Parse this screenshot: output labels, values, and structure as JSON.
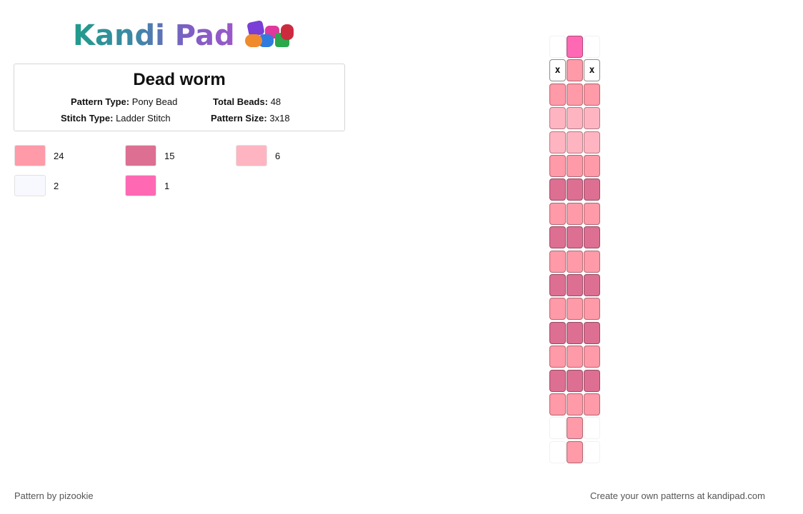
{
  "logo": {
    "text": "Kandi Pad",
    "bead_colors": [
      "#7a3fd6",
      "#e0389c",
      "#2aa84b",
      "#2f7be0",
      "#f08a2c",
      "#cc2b3e"
    ]
  },
  "pattern": {
    "title": "Dead worm",
    "type_label": "Pattern Type:",
    "type_value": "Pony Bead",
    "beads_label": "Total Beads:",
    "beads_value": "48",
    "stitch_label": "Stitch Type:",
    "stitch_value": "Ladder Stitch",
    "size_label": "Pattern Size:",
    "size_value": "3x18"
  },
  "legend": [
    {
      "color": "#ff9aa8",
      "count": "24"
    },
    {
      "color": "#dc6f92",
      "count": "15"
    },
    {
      "color": "#ffb5c1",
      "count": "6"
    },
    {
      "color": "#f8f8ff",
      "count": "2"
    },
    {
      "color": "#ff69b4",
      "count": "1"
    }
  ],
  "grid": {
    "x_mark": "x",
    "palette": {
      "A": "#ff9aa8",
      "B": "#dc6f92",
      "C": "#ffb5c1",
      "P": "#ff69b4",
      "W": "#f8f8ff"
    },
    "rows": [
      ".P.",
      "XAX",
      "AAA",
      "CCC",
      "CCC",
      "AAA",
      "BBB",
      "AAA",
      "BBB",
      "AAA",
      "BBB",
      "AAA",
      "BBB",
      "AAA",
      "BBB",
      "AAA",
      ".A.",
      ".A."
    ]
  },
  "footer": {
    "author": "Pattern by pizookie",
    "cta": "Create your own patterns at kandipad.com"
  }
}
